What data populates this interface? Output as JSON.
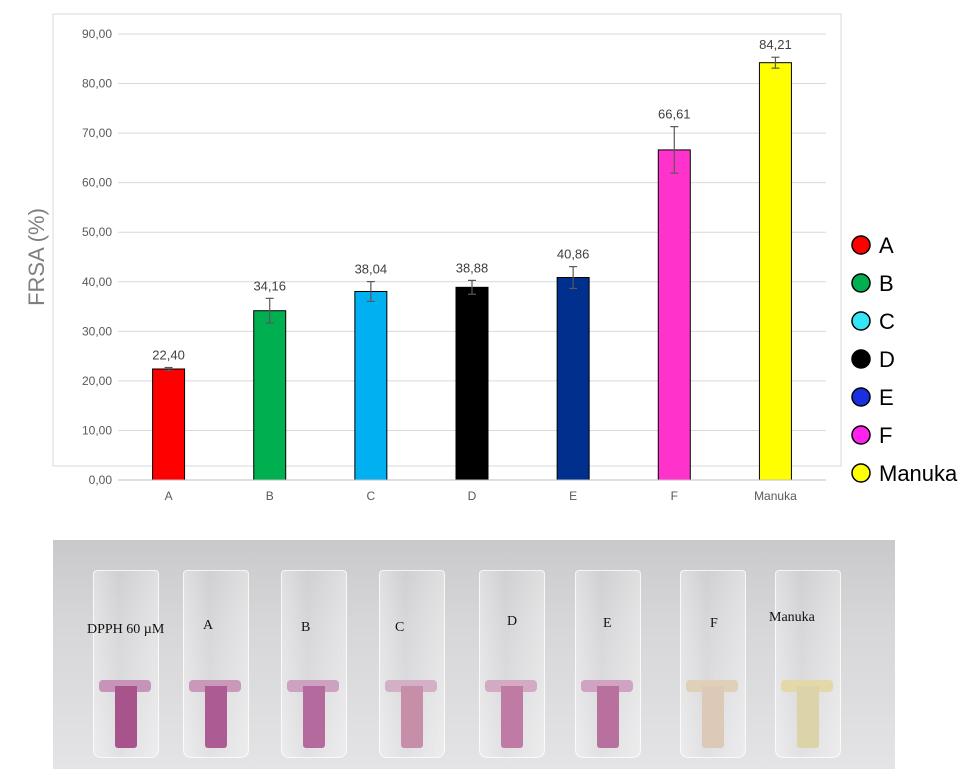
{
  "chart_data": {
    "type": "bar",
    "categories": [
      "A",
      "B",
      "C",
      "D",
      "E",
      "F",
      "Manuka"
    ],
    "values": [
      22.4,
      34.16,
      38.04,
      38.88,
      40.86,
      66.61,
      84.21
    ],
    "data_labels": [
      "22,40",
      "34,16",
      "38,04",
      "38,88",
      "40,86",
      "66,61",
      "84,21"
    ],
    "errors": [
      0.3,
      2.5,
      2.0,
      1.4,
      2.2,
      4.7,
      1.1
    ],
    "colors": [
      "#ff0000",
      "#00b050",
      "#00b0f0",
      "#000000",
      "#002f8e",
      "#ff33cc",
      "#ffff00"
    ],
    "ylabel": "FRSA (%)",
    "ylim": [
      0,
      90
    ],
    "yticks": [
      0,
      10,
      20,
      30,
      40,
      50,
      60,
      70,
      80,
      90
    ],
    "ytick_labels": [
      "0,00",
      "10,00",
      "20,00",
      "30,00",
      "40,00",
      "50,00",
      "60,00",
      "70,00",
      "80,00",
      "90,00"
    ],
    "grid": true,
    "legend_placement": "right",
    "legend": [
      {
        "label": "A",
        "color": "#ff0000"
      },
      {
        "label": "B",
        "color": "#00b050"
      },
      {
        "label": "C",
        "color": "#33e5f5"
      },
      {
        "label": "D",
        "color": "#000000"
      },
      {
        "label": "E",
        "color": "#1a2fe0"
      },
      {
        "label": "F",
        "color": "#ff22ee"
      },
      {
        "label": "Manuka",
        "color": "#ffff00"
      }
    ]
  },
  "photo": {
    "cuvettes": [
      {
        "label": "DPPH 60 µM",
        "upper": "#c594b8",
        "liquid": "#a9538d"
      },
      {
        "label": "A",
        "upper": "#c999bc",
        "liquid": "#ad5b93"
      },
      {
        "label": "B",
        "upper": "#cda2c1",
        "liquid": "#b46a9d"
      },
      {
        "label": "C",
        "upper": "#d4b0c6",
        "liquid": "#c68ea9"
      },
      {
        "label": "D",
        "upper": "#d2aac4",
        "liquid": "#c07ba4"
      },
      {
        "label": "E",
        "upper": "#cfa3c1",
        "liquid": "#b8709f"
      },
      {
        "label": "F",
        "upper": "#e0d0b8",
        "liquid": "#dcc9b8"
      },
      {
        "label": "Manuka",
        "upper": "#e2d8a8",
        "liquid": "#ddd3a8"
      }
    ]
  }
}
